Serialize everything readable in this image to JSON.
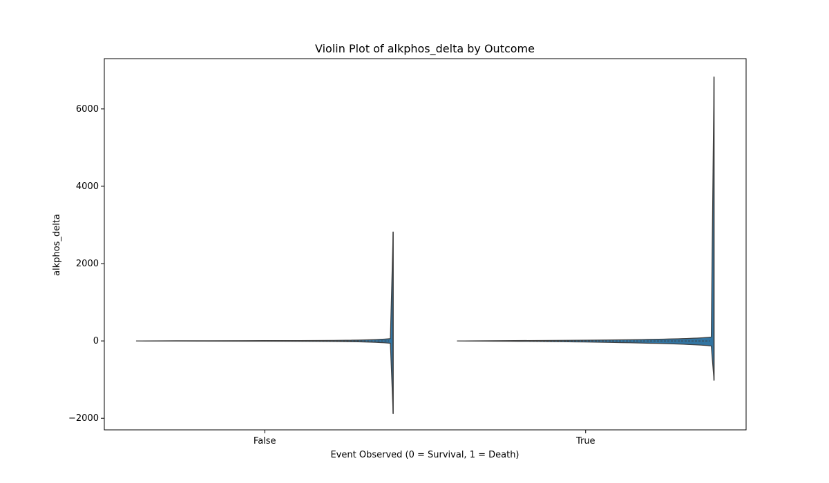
{
  "chart_data": {
    "type": "violin",
    "title": "Violin Plot of alkphos_delta by Outcome",
    "xlabel": "Event Observed (0 = Survival, 1 = Death)",
    "ylabel": "alkphos_delta",
    "categories": [
      "False",
      "True"
    ],
    "ylim": [
      -2300,
      7300
    ],
    "yticks": [
      -2000,
      0,
      2000,
      4000,
      6000
    ],
    "ytick_labels": [
      "−2000",
      "0",
      "2000",
      "4000",
      "6000"
    ],
    "grid": false,
    "violins": [
      {
        "category": "False",
        "min": -1880,
        "max": 2820,
        "body_min": -60,
        "body_max": 60,
        "median": 0,
        "color": "#3274a1"
      },
      {
        "category": "True",
        "min": -1020,
        "max": 6830,
        "body_min": -130,
        "body_max": 100,
        "median": 0,
        "color": "#3274a1"
      }
    ]
  }
}
